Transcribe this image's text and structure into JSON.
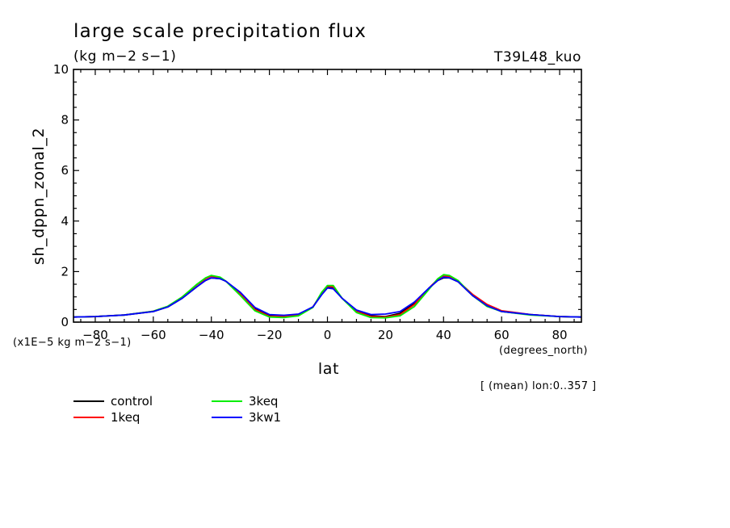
{
  "chart_data": {
    "type": "line",
    "title": "large scale precipitation flux",
    "subtitle": "(kg m−2 s−1)",
    "run_label": "T39L48_kuo",
    "xlabel": "lat",
    "x_units": "(degrees_north)",
    "ylabel": "sh_dppn_zonal_2",
    "y_scale_note": "(x1E−5 kg m−2 s−1)",
    "averaging_note": "[ (mean) lon:0..357 ]",
    "xlim": [
      -87.5,
      87.5
    ],
    "ylim": [
      0,
      10
    ],
    "xticks": [
      -80,
      -60,
      -40,
      -20,
      0,
      20,
      40,
      60,
      80
    ],
    "xtick_labels": [
      "−80",
      "−60",
      "−40",
      "−20",
      "0",
      "20",
      "40",
      "60",
      "80"
    ],
    "yticks": [
      0,
      2,
      4,
      6,
      8,
      10
    ],
    "ytick_labels": [
      "0",
      "2",
      "4",
      "6",
      "8",
      "10"
    ],
    "grid": false,
    "legend_position": "below",
    "x": [
      -87.5,
      -80,
      -70,
      -60,
      -55,
      -50,
      -45,
      -42,
      -40,
      -37,
      -35,
      -30,
      -25,
      -20,
      -15,
      -10,
      -5,
      -2,
      0,
      2,
      5,
      10,
      15,
      20,
      25,
      30,
      35,
      38,
      40,
      42,
      45,
      50,
      55,
      60,
      70,
      80,
      87.5
    ],
    "series": [
      {
        "name": "control",
        "color": "#000000",
        "values": [
          0.2,
          0.22,
          0.28,
          0.42,
          0.6,
          0.95,
          1.4,
          1.65,
          1.75,
          1.72,
          1.62,
          1.15,
          0.55,
          0.27,
          0.25,
          0.3,
          0.6,
          1.1,
          1.38,
          1.35,
          0.95,
          0.45,
          0.25,
          0.22,
          0.35,
          0.75,
          1.35,
          1.65,
          1.75,
          1.75,
          1.6,
          1.05,
          0.65,
          0.42,
          0.3,
          0.22,
          0.2
        ]
      },
      {
        "name": "1keq",
        "color": "#ff0000",
        "values": [
          0.2,
          0.22,
          0.28,
          0.43,
          0.62,
          1.0,
          1.48,
          1.72,
          1.82,
          1.75,
          1.62,
          1.12,
          0.5,
          0.23,
          0.22,
          0.28,
          0.6,
          1.15,
          1.42,
          1.4,
          0.95,
          0.42,
          0.22,
          0.2,
          0.3,
          0.7,
          1.35,
          1.7,
          1.82,
          1.8,
          1.62,
          1.1,
          0.7,
          0.45,
          0.3,
          0.22,
          0.2
        ]
      },
      {
        "name": "3keq",
        "color": "#00ee00",
        "values": [
          0.2,
          0.22,
          0.28,
          0.43,
          0.63,
          1.0,
          1.5,
          1.75,
          1.85,
          1.78,
          1.62,
          1.05,
          0.45,
          0.2,
          0.18,
          0.25,
          0.58,
          1.18,
          1.45,
          1.45,
          0.95,
          0.38,
          0.18,
          0.17,
          0.25,
          0.62,
          1.3,
          1.72,
          1.88,
          1.85,
          1.65,
          1.05,
          0.62,
          0.42,
          0.28,
          0.22,
          0.2
        ]
      },
      {
        "name": "3kw1",
        "color": "#0000ff",
        "values": [
          0.2,
          0.22,
          0.28,
          0.42,
          0.6,
          0.95,
          1.4,
          1.65,
          1.75,
          1.72,
          1.62,
          1.18,
          0.58,
          0.3,
          0.27,
          0.32,
          0.6,
          1.08,
          1.35,
          1.32,
          0.95,
          0.48,
          0.3,
          0.32,
          0.42,
          0.8,
          1.35,
          1.65,
          1.78,
          1.75,
          1.6,
          1.05,
          0.65,
          0.42,
          0.3,
          0.22,
          0.2
        ]
      }
    ]
  }
}
